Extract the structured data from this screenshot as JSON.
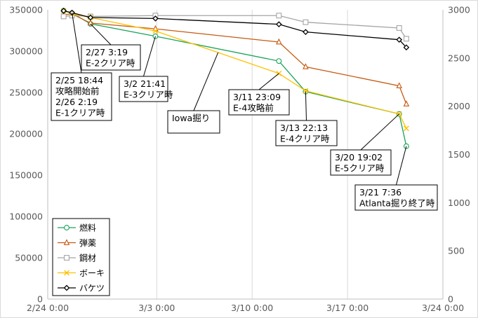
{
  "chart_data": {
    "type": "line",
    "x_axis": {
      "ticks": [
        "2/24 0:00",
        "3/3 0:00",
        "3/10 0:00",
        "3/17 0:00",
        "3/24 0:00"
      ],
      "range": [
        "2/24 0:00",
        "3/24 0:00"
      ]
    },
    "y_axis_left": {
      "range": [
        0,
        350000
      ],
      "ticks": [
        "0",
        "50000",
        "100000",
        "150000",
        "200000",
        "250000",
        "300000",
        "350000"
      ]
    },
    "y_axis_right": {
      "range": [
        0,
        3000
      ],
      "ticks": [
        "0",
        "500",
        "1000",
        "1500",
        "2000",
        "2500",
        "3000"
      ]
    },
    "grid": "vertical",
    "legend_position": "bottom-left",
    "series": [
      {
        "name": "燃料",
        "axis": "left",
        "color": "#1aa35a",
        "marker": "circle",
        "points": [
          {
            "x": "2/25 4:00",
            "y": 349000
          },
          {
            "x": "2/25 18:44",
            "y": 346000
          },
          {
            "x": "2/27 3:19",
            "y": 333000
          },
          {
            "x": "3/2 21:41",
            "y": 318000
          },
          {
            "x": "3/11 23:09",
            "y": 288000
          },
          {
            "x": "3/13 22:13",
            "y": 251000
          },
          {
            "x": "3/20 19:02",
            "y": 224000
          },
          {
            "x": "3/21 7:36",
            "y": 185000
          }
        ]
      },
      {
        "name": "弾薬",
        "axis": "left",
        "color": "#c55a11",
        "marker": "triangle",
        "points": [
          {
            "x": "2/25 4:00",
            "y": 344000
          },
          {
            "x": "2/25 18:44",
            "y": 345000
          },
          {
            "x": "2/27 3:19",
            "y": 334000
          },
          {
            "x": "3/2 21:41",
            "y": 327000
          },
          {
            "x": "3/11 23:09",
            "y": 311000
          },
          {
            "x": "3/13 22:13",
            "y": 281000
          },
          {
            "x": "3/20 19:02",
            "y": 258000
          },
          {
            "x": "3/21 7:36",
            "y": 236000
          }
        ]
      },
      {
        "name": "鋼材",
        "axis": "left",
        "color": "#a5a5a5",
        "marker": "square",
        "points": [
          {
            "x": "2/25 4:00",
            "y": 342000
          },
          {
            "x": "2/25 18:44",
            "y": 343000
          },
          {
            "x": "2/27 3:19",
            "y": 342000
          },
          {
            "x": "3/2 21:41",
            "y": 343000
          },
          {
            "x": "3/11 23:09",
            "y": 343000
          },
          {
            "x": "3/13 22:13",
            "y": 335000
          },
          {
            "x": "3/20 19:02",
            "y": 328000
          },
          {
            "x": "3/21 7:36",
            "y": 315000
          }
        ]
      },
      {
        "name": "ボーキ",
        "axis": "right",
        "color": "#ffc000",
        "marker": "x",
        "points": [
          {
            "x": "2/25 4:00",
            "y": 2990
          },
          {
            "x": "2/25 18:44",
            "y": 2960
          },
          {
            "x": "2/27 3:19",
            "y": 2920
          },
          {
            "x": "3/2 21:41",
            "y": 2780
          },
          {
            "x": "3/11 23:09",
            "y": 2340
          },
          {
            "x": "3/13 22:13",
            "y": 2160
          },
          {
            "x": "3/20 19:02",
            "y": 1920
          },
          {
            "x": "3/21 7:36",
            "y": 1770
          }
        ]
      },
      {
        "name": "バケツ",
        "axis": "right",
        "color": "#000000",
        "marker": "diamond",
        "points": [
          {
            "x": "2/25 4:00",
            "y": 2990
          },
          {
            "x": "2/25 18:44",
            "y": 2970
          },
          {
            "x": "2/27 3:19",
            "y": 2920
          },
          {
            "x": "3/2 21:41",
            "y": 2910
          },
          {
            "x": "3/11 23:09",
            "y": 2850
          },
          {
            "x": "3/13 22:13",
            "y": 2770
          },
          {
            "x": "3/20 19:02",
            "y": 2690
          },
          {
            "x": "3/21 7:36",
            "y": 2610
          }
        ]
      }
    ],
    "annotations": [
      {
        "lines": [
          "2/25 18:44",
          "攻略開始前",
          "2/26 2:19",
          "E-1クリア時"
        ],
        "x": "2/25 18:44",
        "series": "バケツ"
      },
      {
        "lines": [
          "2/27 3:19",
          "E-2クリア時"
        ],
        "x": "2/27 3:19",
        "series": "燃料"
      },
      {
        "lines": [
          "3/2 21:41",
          "E-3クリア時"
        ],
        "x": "3/2 21:41",
        "series": "燃料"
      },
      {
        "lines": [
          "Iowa掘り"
        ],
        "x": "3/7 12:00",
        "series": "ボーキ"
      },
      {
        "lines": [
          "3/11 23:09",
          "E-4攻略前"
        ],
        "x": "3/11 23:09",
        "series": "ボーキ"
      },
      {
        "lines": [
          "3/13 22:13",
          "E-4クリア時"
        ],
        "x": "3/13 22:13",
        "series": "燃料"
      },
      {
        "lines": [
          "3/20 19:02",
          "E-5クリア時"
        ],
        "x": "3/20 19:02",
        "series": "燃料"
      },
      {
        "lines": [
          "3/21 7:36",
          "Atlanta掘り終了時"
        ],
        "x": "3/21 7:36",
        "series": "燃料"
      }
    ]
  }
}
